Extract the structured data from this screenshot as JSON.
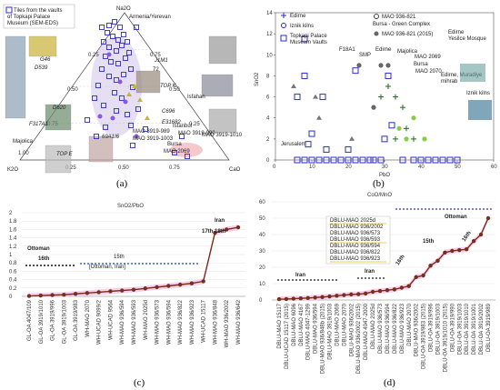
{
  "panel_labels": [
    "(a)",
    "(b)",
    "(c)",
    "(d)"
  ],
  "chart_data": [
    {
      "type": "scatter",
      "subtype": "ternary",
      "vertices": [
        "Na2O",
        "K2O",
        "CaO"
      ],
      "ticks": [
        "0.25",
        "0.50",
        "0.75",
        "1.00"
      ],
      "legend": "Tiles from the vaults of Topkapi Palace Museum (SEM-EDS)",
      "annotations": [
        "Armenia/Yerevan",
        "J1M1",
        "72",
        "TOP K",
        "G46",
        "D539",
        "D620",
        "F317A1",
        "C696",
        "E31682",
        "Isfahan",
        "Istanbul",
        "MAO 3919-990",
        "MAO 3919-1010",
        "MAO 3919-989",
        "MAO 3919-1003",
        "Bursa",
        "MAO 2069",
        "Majolica",
        "TOP E",
        "69A1I6"
      ],
      "colors": {
        "markers": "#2b2bd6",
        "fill": "#c8b8e6",
        "ochre": "#c9b237"
      }
    },
    {
      "type": "scatter",
      "xlabel": "PbO",
      "ylabel": "SnO2",
      "xlim": [
        0,
        60
      ],
      "ylim": [
        0,
        14
      ],
      "xticks": [
        0,
        10,
        20,
        30,
        40,
        50,
        60
      ],
      "yticks": [
        0,
        2,
        4,
        6,
        8,
        10,
        12,
        14
      ],
      "legend": [
        "Edirne",
        "Iznik kilns",
        "Topkapi Palace Museum Vaults",
        "MAO 936-821 Bursa - Green Complex",
        "MAO 936-821 (2015)",
        "Edirne Yesilce Mosque"
      ],
      "annotations": [
        "F18A1",
        "SMP",
        "Edirne",
        "Majolica",
        "MAO 2069",
        "Bursa",
        "MAO 2070",
        "Edirne, Muradiye mihrab",
        "Iznik kilns",
        "Jerusalem"
      ],
      "series": [
        {
          "name": "Topkapi Palace Museum Vaults",
          "points": [
            [
              8,
              11.5
            ],
            [
              8,
              8
            ],
            [
              6,
              6
            ],
            [
              13,
              6
            ],
            [
              10,
              2.5
            ],
            [
              9,
              1.5
            ],
            [
              14,
              1
            ],
            [
              20,
              1
            ],
            [
              22,
              8.5
            ],
            [
              27,
              0
            ],
            [
              30,
              2
            ],
            [
              32,
              3.3
            ],
            [
              31,
              8
            ],
            [
              35,
              0
            ],
            [
              38,
              0
            ],
            [
              40,
              0
            ],
            [
              42,
              0
            ],
            [
              44,
              0
            ],
            [
              46,
              0
            ],
            [
              48,
              0
            ],
            [
              50,
              0
            ],
            [
              18,
              0
            ],
            [
              20,
              0
            ],
            [
              22,
              0
            ],
            [
              24,
              0
            ],
            [
              12,
              0
            ],
            [
              14,
              0
            ],
            [
              6,
              0
            ],
            [
              8,
              0
            ],
            [
              10,
              0
            ],
            [
              16,
              0
            ],
            [
              26,
              0
            ],
            [
              29,
              0
            ]
          ]
        },
        {
          "name": "Edirne",
          "points": [
            [
              29,
              6
            ],
            [
              33,
              6
            ],
            [
              31,
              7
            ],
            [
              35,
              5
            ],
            [
              36,
              3
            ],
            [
              38,
              2
            ],
            [
              33,
              2
            ]
          ]
        },
        {
          "name": "MAO 936-821 Bursa - Green Complex",
          "points": [
            [
              5,
              7
            ],
            [
              11,
              6
            ],
            [
              21,
              2
            ],
            [
              12,
              4
            ]
          ]
        },
        {
          "name": "MAO 936-821 (2015)",
          "points": [
            [
              27,
              5
            ],
            [
              23,
              9
            ],
            [
              29,
              9
            ],
            [
              31,
              9
            ]
          ]
        },
        {
          "name": "Iznik kilns",
          "points": [
            [
              34,
              3
            ],
            [
              38,
              4
            ],
            [
              41,
              2
            ],
            [
              36,
              2
            ]
          ]
        }
      ]
    },
    {
      "type": "line",
      "title": "SnO2/PbO",
      "ylim": [
        0,
        2
      ],
      "yticks": [
        "0",
        "0.2",
        "0.4",
        "0.6",
        "0.8",
        "1",
        "1.2",
        "1.4",
        "1.6",
        "1.8",
        "2"
      ],
      "categories": [
        "GL-OA 4047/109",
        "GL-OA 3919/1010",
        "GL-OA 3919/996",
        "GL-OA 3919/1003",
        "GL-OA 3919/983",
        "WH-MAO 2070",
        "WH-UCAD 9099/2",
        "WH-UCAD 9564",
        "WH-MAO 936/594",
        "WH-MAO 936/593",
        "WH-MAO 2025d",
        "WH-MAO 936/573",
        "WH-MAO 936/594",
        "WH-MAO 936/822",
        "WH-MAO 936/923",
        "WH-UCAD 15117",
        "WH-MAO 936/848",
        "WH-MAO 936/2002",
        "WH-MAO 936/642"
      ],
      "values": [
        0.01,
        0.02,
        0.03,
        0.04,
        0.06,
        0.08,
        0.1,
        0.12,
        0.14,
        0.16,
        0.19,
        0.22,
        0.25,
        0.28,
        0.31,
        0.36,
        1.52,
        1.6,
        1.65
      ],
      "annotations": [
        {
          "text": "Ottoman",
          "sub": "16th"
        },
        {
          "text": "15th",
          "sub": "[Ottoman, Iran]"
        },
        {
          "text": "Iran",
          "sub": "17th 18th"
        }
      ],
      "colors": {
        "line": "#7a2d1a",
        "band": "#f2c6ea",
        "arrow_blue": "#4466cc"
      }
    },
    {
      "type": "line",
      "title": "CoO/MnO",
      "ylim": [
        0,
        60
      ],
      "yticks": [
        "0",
        "10",
        "20",
        "30",
        "40",
        "50",
        "60"
      ],
      "categories": [
        "DBLU-MAO 15117",
        "DBLU-UCAD 15117 (2015)",
        "DBLU-MAO 6096",
        "DBLU-MAO 4167",
        "DBLU-MAO 4047-1299",
        "DBLU-MAO 936/594",
        "DBLU-MAO 936/848b (2015)",
        "DBLU-MAO 3919/1003",
        "DBLU-MAO 2069",
        "DBLU-MAO 2070",
        "DBLU-MAO 936/2002",
        "DBLU-MAO 936/2002 (2015)",
        "DBLU-MAO 4047-2000",
        "DBLU-MAO 2025d",
        "DBLU-MAO 936/573",
        "DBLU-MAO 936/594",
        "DBLU-MAO 936/822",
        "DBLU-MAO 936/923",
        "DBLU-MAO 2070",
        "DBLU-MAO 936/2002",
        "DBLU-OA 3919/983 (2015)",
        "DBLU-OA 3919/996",
        "DBLU-OA 3919/1003",
        "DBLU-OA 3919/1010 (2015)",
        "DBLU-OA 3919/990",
        "DBLU-OA 3919/1003",
        "DBLU-OA 3919/1010",
        "DBLU-OA 3919/1001",
        "DBLU-OA 3919/2002",
        "DBLU-OA 3919/989"
      ],
      "values": [
        0.5,
        0.6,
        0.8,
        1,
        1.2,
        1.5,
        1.8,
        2.2,
        2.6,
        3,
        3.4,
        3.6,
        4,
        5,
        5.5,
        6,
        6.5,
        7.5,
        8.5,
        14,
        15,
        21,
        24,
        29,
        30,
        30.5,
        31,
        36,
        40,
        50
      ],
      "legend_box": [
        "DBLU-MAO 2025d",
        "DBLU-MAO 936/2002",
        "DBLU-MAO 936/573",
        "DBLU-MAO 936/593",
        "DBLU-MAO 936/594",
        "DBLU-MAO 936/822",
        "DBLU-MAO 936/923"
      ],
      "annotations": [
        {
          "text": "Iran"
        },
        {
          "text": "Iran"
        },
        {
          "text": "16th"
        },
        {
          "text": "15th"
        },
        {
          "text": "16th"
        },
        {
          "text": "Ottoman"
        }
      ],
      "colors": {
        "line": "#7a2d1a",
        "band": "#f2c6ea",
        "arrow_blue": "#2a2ad6",
        "highlight": "#e8c21a"
      }
    }
  ]
}
